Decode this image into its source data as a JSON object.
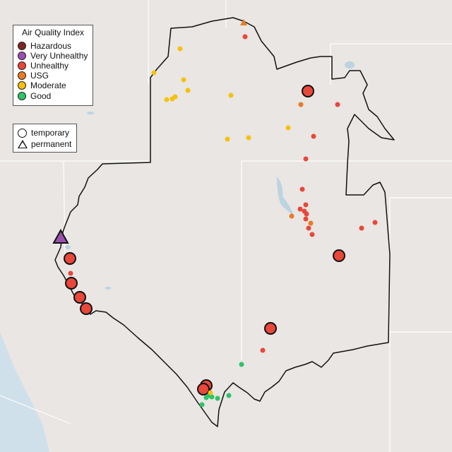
{
  "map": {
    "aqi_legend": {
      "title": "Air Quality Index",
      "items": [
        {
          "label": "Hazardous",
          "color": "#7e2622"
        },
        {
          "label": "Very Unhealthy",
          "color": "#9b4fb0"
        },
        {
          "label": "Unhealthy",
          "color": "#e8473a"
        },
        {
          "label": "USG",
          "color": "#e97b26"
        },
        {
          "label": "Moderate",
          "color": "#f4c20d"
        },
        {
          "label": "Good",
          "color": "#2dc46a"
        }
      ]
    },
    "type_legend": {
      "items": [
        {
          "label": "temporary",
          "shape": "circle"
        },
        {
          "label": "permanent",
          "shape": "triangle"
        }
      ]
    }
  }
}
